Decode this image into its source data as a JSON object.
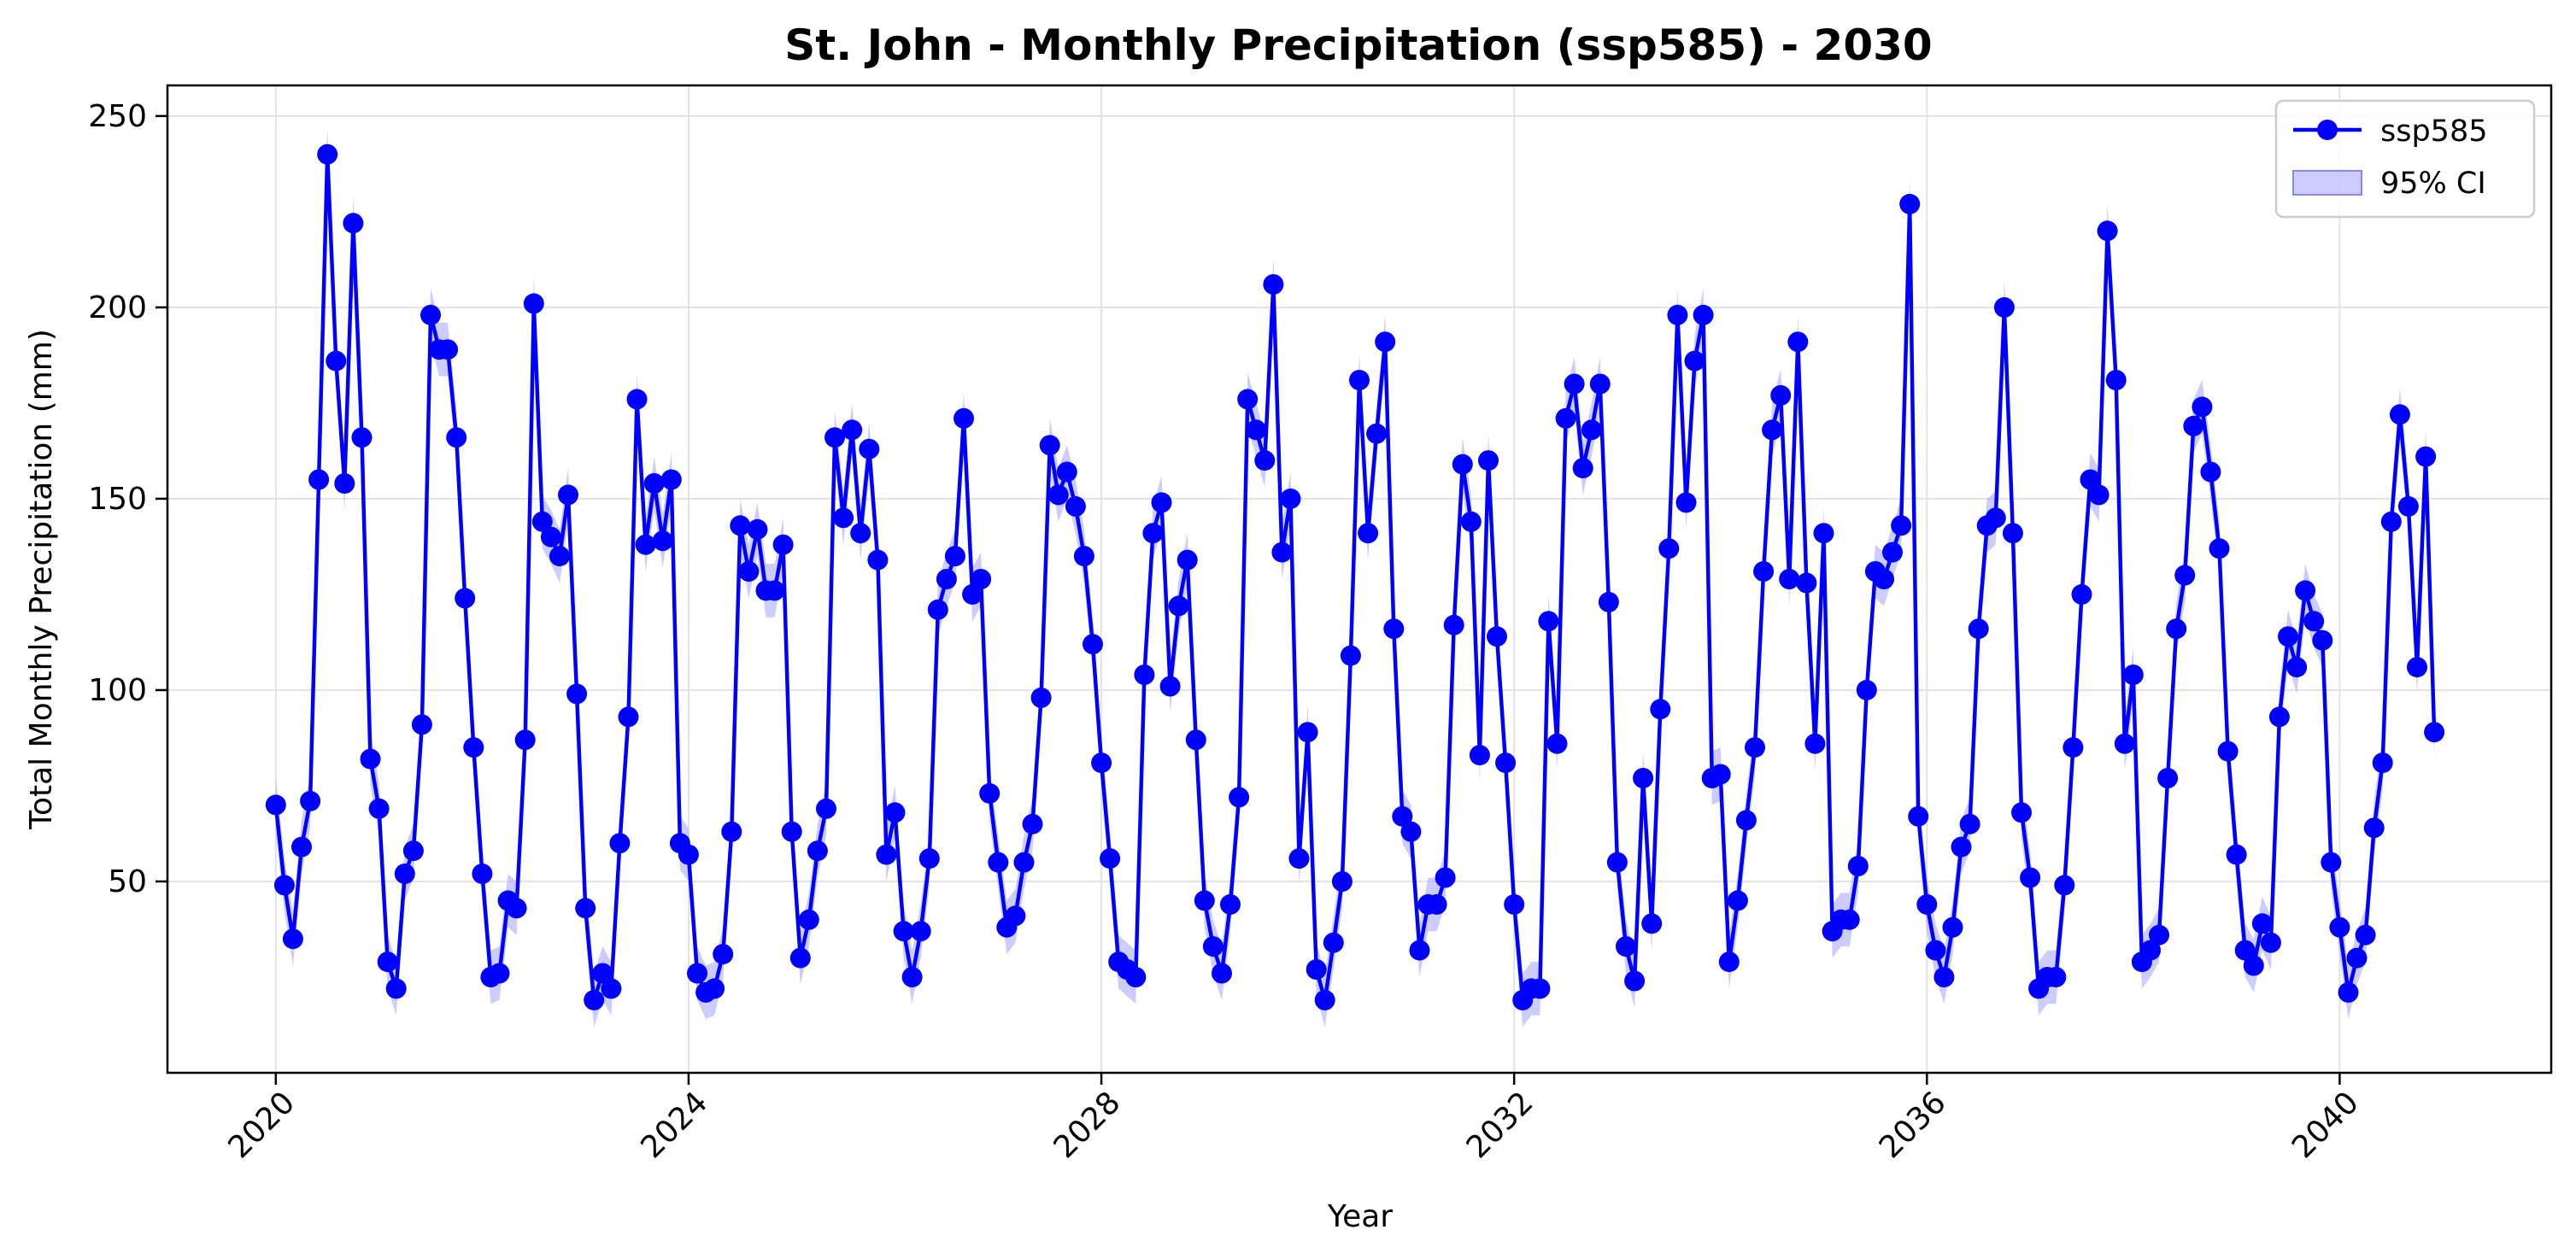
{
  "chart_data": {
    "type": "line",
    "title": "St. John - Monthly Precipitation (ssp585) - 2030",
    "xlabel": "Year",
    "ylabel": "Total Monthly Precipitation (mm)",
    "xlim": [
      2018.95,
      2042.05
    ],
    "ylim": [
      0,
      258
    ],
    "xticks": [
      2020,
      2024,
      2028,
      2032,
      2036,
      2040
    ],
    "yticks": [
      50,
      100,
      150,
      200,
      250
    ],
    "grid": true,
    "legend_position": "top-right",
    "legend": [
      {
        "label": "ssp585",
        "kind": "line-marker"
      },
      {
        "label": "95% CI",
        "kind": "band"
      }
    ],
    "colors": {
      "line": "#0000ff",
      "band": "#aaaaff"
    },
    "series": [
      {
        "name": "ssp585",
        "start_year": 2020,
        "start_month": 1,
        "values": [
          70,
          49,
          35,
          59,
          71,
          155,
          240,
          186,
          154,
          222,
          166,
          82,
          69,
          29,
          22,
          52,
          58,
          91,
          198,
          189,
          189,
          166,
          124,
          85,
          52,
          25,
          26,
          45,
          43,
          87,
          201,
          144,
          140,
          135,
          151,
          99,
          43,
          19,
          26,
          22,
          60,
          93,
          176,
          138,
          154,
          139,
          155,
          60,
          57,
          26,
          21,
          22,
          31,
          63,
          143,
          131,
          142,
          126,
          126,
          138,
          63,
          30,
          40,
          58,
          69,
          166,
          145,
          168,
          141,
          163,
          134,
          57,
          68,
          37,
          25,
          37,
          56,
          121,
          129,
          135,
          171,
          125,
          129,
          73,
          55,
          38,
          41,
          55,
          65,
          98,
          164,
          151,
          157,
          148,
          135,
          112,
          81,
          56,
          29,
          27,
          25,
          104,
          141,
          149,
          101,
          122,
          134,
          87,
          45,
          33,
          26,
          44,
          72,
          176,
          168,
          160,
          206,
          136,
          150,
          56,
          89,
          27,
          19,
          34,
          50,
          109,
          181,
          141,
          167,
          191,
          116,
          67,
          63,
          32,
          44,
          44,
          51,
          117,
          159,
          144,
          83,
          160,
          114,
          81,
          44,
          19,
          22,
          22,
          118,
          86,
          171,
          180,
          158,
          168,
          180,
          123,
          55,
          33,
          24,
          77,
          39,
          95,
          137,
          198,
          149,
          186,
          198,
          77,
          78,
          29,
          45,
          66,
          85,
          131,
          168,
          177,
          129,
          191,
          128,
          86,
          141,
          37,
          40,
          40,
          54,
          100,
          131,
          129,
          136,
          143,
          227,
          67,
          44,
          32,
          25,
          38,
          59,
          65,
          116,
          143,
          145,
          200,
          141,
          68,
          51,
          22,
          25,
          25,
          49,
          85,
          125,
          155,
          151,
          220,
          181,
          86,
          104,
          29,
          32,
          36,
          77,
          116,
          130,
          169,
          174,
          157,
          137,
          84,
          57,
          32,
          28,
          39,
          34,
          93,
          114,
          106,
          126,
          118,
          113,
          55,
          38,
          21,
          30,
          36,
          64,
          81,
          144,
          172,
          148,
          106,
          161,
          89
        ],
        "ci_halfwidth": 7
      }
    ]
  }
}
